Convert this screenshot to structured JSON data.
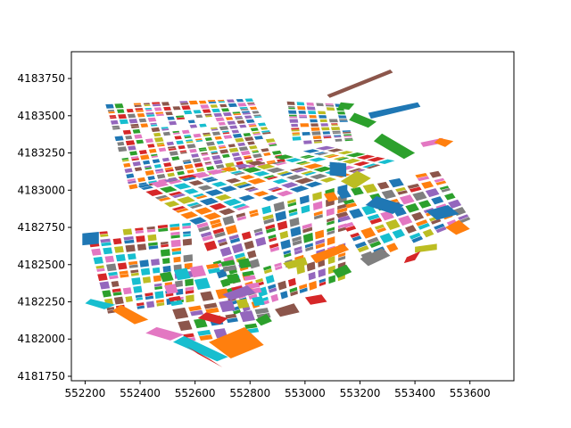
{
  "chart_data": {
    "type": "polygon-map",
    "title": "",
    "xlabel": "",
    "ylabel": "",
    "xlim": [
      552150,
      553760
    ],
    "ylim": [
      4181720,
      4183930
    ],
    "x_ticks": [
      552200,
      552400,
      552600,
      552800,
      553000,
      553200,
      553400,
      553600
    ],
    "y_ticks": [
      4181750,
      4182000,
      4182250,
      4182500,
      4182750,
      4183000,
      4183250,
      4183500,
      4183750
    ],
    "grid": false,
    "legend": "none",
    "palette": [
      "#1f77b4",
      "#ff7f0e",
      "#2ca02c",
      "#d62728",
      "#9467bd",
      "#8c564b",
      "#e377c2",
      "#7f7f7f",
      "#bcbd22",
      "#17becf"
    ],
    "regions": [
      {
        "name": "north-grid",
        "corners": [
          [
            552270,
            4183580
          ],
          [
            552810,
            4183620
          ],
          [
            552935,
            4183190
          ],
          [
            552360,
            4183000
          ]
        ],
        "cols": 16,
        "rows": 16,
        "seed": 11
      },
      {
        "name": "north-grid-east",
        "corners": [
          [
            552930,
            4183600
          ],
          [
            553140,
            4183580
          ],
          [
            553180,
            4183330
          ],
          [
            552955,
            4183300
          ]
        ],
        "cols": 6,
        "rows": 10,
        "seed": 23
      },
      {
        "name": "central-grid",
        "corners": [
          [
            552380,
            4183030
          ],
          [
            553080,
            4183300
          ],
          [
            553340,
            4183200
          ],
          [
            552600,
            4182760
          ]
        ],
        "cols": 14,
        "rows": 7,
        "seed": 37
      },
      {
        "name": "southwest-grid",
        "corners": [
          [
            552200,
            4182720
          ],
          [
            552590,
            4182790
          ],
          [
            552600,
            4182250
          ],
          [
            552280,
            4182160
          ]
        ],
        "cols": 9,
        "rows": 10,
        "seed": 41
      },
      {
        "name": "south-central-grid",
        "corners": [
          [
            552600,
            4182770
          ],
          [
            553160,
            4183050
          ],
          [
            553150,
            4182400
          ],
          [
            552740,
            4182150
          ]
        ],
        "cols": 12,
        "rows": 10,
        "seed": 53
      },
      {
        "name": "east-grid",
        "corners": [
          [
            553060,
            4182980
          ],
          [
            553490,
            4183140
          ],
          [
            553610,
            4182800
          ],
          [
            553220,
            4182500
          ]
        ],
        "cols": 9,
        "rows": 7,
        "seed": 67
      },
      {
        "name": "south-strip",
        "corners": [
          [
            552460,
            4182450
          ],
          [
            552800,
            4182560
          ],
          [
            552900,
            4182050
          ],
          [
            552560,
            4181960
          ]
        ],
        "cols": 6,
        "rows": 6,
        "seed": 71
      }
    ],
    "polygons": [
      {
        "points": [
          [
            553080,
            4183640
          ],
          [
            553310,
            4183810
          ],
          [
            553320,
            4183790
          ],
          [
            553090,
            4183620
          ]
        ],
        "color": "#8c564b"
      },
      {
        "points": [
          [
            553130,
            4183590
          ],
          [
            553180,
            4183580
          ],
          [
            553160,
            4183540
          ],
          [
            553120,
            4183550
          ]
        ],
        "color": "#2ca02c"
      },
      {
        "points": [
          [
            553230,
            4183520
          ],
          [
            553410,
            4183590
          ],
          [
            553420,
            4183560
          ],
          [
            553240,
            4183480
          ]
        ],
        "color": "#1f77b4"
      },
      {
        "points": [
          [
            553180,
            4183520
          ],
          [
            553260,
            4183460
          ],
          [
            553230,
            4183420
          ],
          [
            553160,
            4183470
          ]
        ],
        "color": "#2ca02c"
      },
      {
        "points": [
          [
            553280,
            4183380
          ],
          [
            553400,
            4183250
          ],
          [
            553360,
            4183210
          ],
          [
            553250,
            4183330
          ]
        ],
        "color": "#2ca02c"
      },
      {
        "points": [
          [
            553420,
            4183320
          ],
          [
            553500,
            4183350
          ],
          [
            553510,
            4183320
          ],
          [
            553430,
            4183290
          ]
        ],
        "color": "#e377c2"
      },
      {
        "points": [
          [
            553490,
            4183350
          ],
          [
            553540,
            4183330
          ],
          [
            553510,
            4183290
          ],
          [
            553470,
            4183320
          ]
        ],
        "color": "#ff7f0e"
      },
      {
        "points": [
          [
            553090,
            4183190
          ],
          [
            553150,
            4183180
          ],
          [
            553150,
            4183090
          ],
          [
            553090,
            4183100
          ]
        ],
        "color": "#1f77b4"
      },
      {
        "points": [
          [
            553130,
            4183060
          ],
          [
            553190,
            4183130
          ],
          [
            553240,
            4183080
          ],
          [
            553180,
            4183010
          ]
        ],
        "color": "#bcbd22"
      },
      {
        "points": [
          [
            553260,
            4182960
          ],
          [
            553360,
            4182900
          ],
          [
            553320,
            4182840
          ],
          [
            553220,
            4182900
          ]
        ],
        "color": "#1f77b4"
      },
      {
        "points": [
          [
            553440,
            4182860
          ],
          [
            553520,
            4182900
          ],
          [
            553560,
            4182840
          ],
          [
            553480,
            4182800
          ]
        ],
        "color": "#1f77b4"
      },
      {
        "points": [
          [
            553510,
            4182750
          ],
          [
            553560,
            4182800
          ],
          [
            553600,
            4182740
          ],
          [
            553550,
            4182700
          ]
        ],
        "color": "#ff7f0e"
      },
      {
        "points": [
          [
            553400,
            4182620
          ],
          [
            553480,
            4182640
          ],
          [
            553480,
            4182600
          ],
          [
            553400,
            4182580
          ]
        ],
        "color": "#bcbd22"
      },
      {
        "points": [
          [
            553370,
            4182550
          ],
          [
            553420,
            4182590
          ],
          [
            553400,
            4182530
          ],
          [
            553360,
            4182510
          ]
        ],
        "color": "#d62728"
      },
      {
        "points": [
          [
            553200,
            4182540
          ],
          [
            553280,
            4182610
          ],
          [
            553310,
            4182560
          ],
          [
            553230,
            4182490
          ]
        ],
        "color": "#7f7f7f"
      },
      {
        "points": [
          [
            553100,
            4182460
          ],
          [
            553150,
            4182500
          ],
          [
            553170,
            4182450
          ],
          [
            553120,
            4182410
          ]
        ],
        "color": "#2ca02c"
      },
      {
        "points": [
          [
            553020,
            4182560
          ],
          [
            553140,
            4182640
          ],
          [
            553160,
            4182600
          ],
          [
            553040,
            4182510
          ]
        ],
        "color": "#ff7f0e"
      },
      {
        "points": [
          [
            552920,
            4182510
          ],
          [
            553000,
            4182550
          ],
          [
            553010,
            4182500
          ],
          [
            552940,
            4182470
          ]
        ],
        "color": "#bcbd22"
      },
      {
        "points": [
          [
            552190,
            4182710
          ],
          [
            552250,
            4182720
          ],
          [
            552250,
            4182640
          ],
          [
            552190,
            4182630
          ]
        ],
        "color": "#1f77b4"
      },
      {
        "points": [
          [
            552220,
            4182270
          ],
          [
            552310,
            4182230
          ],
          [
            552270,
            4182200
          ],
          [
            552200,
            4182240
          ]
        ],
        "color": "#17becf"
      },
      {
        "points": [
          [
            552330,
            4182230
          ],
          [
            552430,
            4182130
          ],
          [
            552380,
            4182100
          ],
          [
            552300,
            4182190
          ]
        ],
        "color": "#ff7f0e"
      },
      {
        "points": [
          [
            552460,
            4182080
          ],
          [
            552560,
            4182030
          ],
          [
            552510,
            4181990
          ],
          [
            552420,
            4182040
          ]
        ],
        "color": "#e377c2"
      },
      {
        "points": [
          [
            552560,
            4182020
          ],
          [
            552720,
            4181880
          ],
          [
            552680,
            4181850
          ],
          [
            552520,
            4181980
          ]
        ],
        "color": "#17becf"
      },
      {
        "points": [
          [
            552570,
            4181950
          ],
          [
            552650,
            4181870
          ],
          [
            552700,
            4181810
          ],
          [
            552610,
            4181900
          ]
        ],
        "color": "#d62728"
      },
      {
        "points": [
          [
            552650,
            4181980
          ],
          [
            552780,
            4182080
          ],
          [
            552850,
            4181960
          ],
          [
            552730,
            4181870
          ]
        ],
        "color": "#ff7f0e"
      },
      {
        "points": [
          [
            552640,
            4182180
          ],
          [
            552720,
            4182140
          ],
          [
            552690,
            4182100
          ],
          [
            552610,
            4182140
          ]
        ],
        "color": "#d62728"
      },
      {
        "points": [
          [
            552820,
            4182130
          ],
          [
            552860,
            4182170
          ],
          [
            552880,
            4182120
          ],
          [
            552840,
            4182090
          ]
        ],
        "color": "#2ca02c"
      },
      {
        "points": [
          [
            552890,
            4182200
          ],
          [
            552960,
            4182240
          ],
          [
            552980,
            4182180
          ],
          [
            552910,
            4182150
          ]
        ],
        "color": "#8c564b"
      },
      {
        "points": [
          [
            553000,
            4182280
          ],
          [
            553060,
            4182300
          ],
          [
            553080,
            4182250
          ],
          [
            553020,
            4182230
          ]
        ],
        "color": "#d62728"
      },
      {
        "points": [
          [
            552700,
            4182300
          ],
          [
            552790,
            4182360
          ],
          [
            552820,
            4182310
          ],
          [
            552730,
            4182260
          ]
        ],
        "color": "#9467bd"
      }
    ]
  }
}
